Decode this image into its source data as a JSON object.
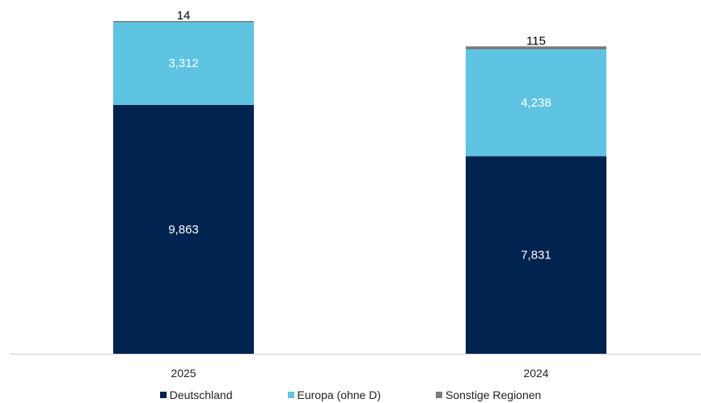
{
  "chart_data": {
    "type": "bar",
    "stacked": true,
    "categories": [
      "2025",
      "2024"
    ],
    "series": [
      {
        "name": "Deutschland",
        "values": [
          9863,
          7831
        ],
        "labels": [
          "9,863",
          "7,831"
        ],
        "color": "#00234f",
        "label_color": "#ffffff"
      },
      {
        "name": "Europa (ohne D)",
        "values": [
          3312,
          4238
        ],
        "labels": [
          "3,312",
          "4,238"
        ],
        "color": "#5fc4e2",
        "label_color": "#ffffff"
      },
      {
        "name": "Sonstige Regionen",
        "values": [
          14,
          115
        ],
        "labels": [
          "14",
          "115"
        ],
        "color": "#7b7b7b",
        "label_color": "#000000"
      }
    ],
    "ylim": [
      0,
      13189
    ],
    "legend_position": "bottom",
    "grid": false
  }
}
